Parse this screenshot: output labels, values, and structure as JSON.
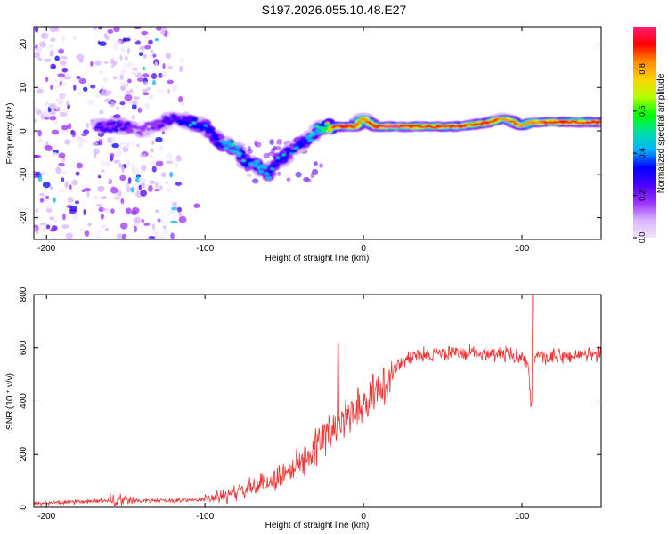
{
  "title": "S197.2026.055.10.48.E27",
  "colors": {
    "snr_line": "#ee3333",
    "colormap": [
      "#f2e6ff",
      "#d8b4ff",
      "#9b30ff",
      "#4b00ff",
      "#0000ff",
      "#00b4ff",
      "#00e0a0",
      "#00ff00",
      "#b4ff00",
      "#ffd200",
      "#ff8c00",
      "#ff0000",
      "#ff1e78"
    ]
  },
  "chart_data": [
    {
      "type": "heatmap",
      "title": "S197.2026.055.10.48.E27",
      "xlabel": "Height of straight line (km)",
      "ylabel": "Frequency (Hz)",
      "xlim": [
        -208,
        150
      ],
      "ylim": [
        -25,
        24
      ],
      "xticks": [
        -200,
        -100,
        0,
        100
      ],
      "yticks": [
        -20,
        -10,
        0,
        10,
        20
      ],
      "colorbar": {
        "label": "Normalized spectral amplitude",
        "range": [
          0,
          1
        ],
        "ticks": [
          "0.0",
          "0.2",
          "0.4",
          "0.6",
          "0.8"
        ]
      },
      "ridge": {
        "x": [
          -168,
          -160,
          -150,
          -140,
          -126,
          -120,
          -110,
          -100,
          -90,
          -80,
          -75,
          -68,
          -60,
          -55,
          -50,
          -44,
          -40,
          -35,
          -30,
          -25,
          -20,
          -15,
          -5,
          0,
          3,
          8,
          15,
          30,
          60,
          80,
          88,
          95,
          100,
          105,
          120,
          150
        ],
        "y": [
          1,
          1,
          1,
          0,
          2,
          3,
          2,
          1,
          -3,
          -4,
          -7,
          -8,
          -10,
          -7,
          -6,
          -4,
          -3,
          -2,
          0,
          1,
          1,
          1,
          1,
          3,
          2,
          1,
          1,
          1,
          1,
          2,
          3,
          2,
          1,
          2,
          2,
          2
        ],
        "amplitude": [
          0.3,
          0.35,
          0.3,
          0.2,
          0.3,
          0.35,
          0.5,
          0.45,
          0.5,
          0.55,
          0.45,
          0.55,
          0.5,
          0.45,
          0.5,
          0.4,
          0.45,
          0.5,
          0.5,
          0.7,
          0.95,
          0.9,
          0.9,
          0.8,
          0.9,
          0.95,
          0.97,
          0.95,
          0.9,
          0.95,
          0.8,
          0.9,
          0.85,
          0.8,
          0.95,
          0.9
        ]
      }
    },
    {
      "type": "line",
      "xlabel": "Height of straight line (km)",
      "ylabel": "SNR (10 * v/v)",
      "xlim": [
        -208,
        150
      ],
      "ylim": [
        0,
        800
      ],
      "xticks": [
        -200,
        -100,
        0,
        100
      ],
      "yticks": [
        0,
        200,
        400,
        600,
        800
      ],
      "series": [
        {
          "name": "SNR",
          "x": [
            -208,
            -180,
            -160,
            -140,
            -120,
            -100,
            -90,
            -80,
            -70,
            -60,
            -50,
            -40,
            -30,
            -20,
            -15,
            -10,
            -5,
            0,
            5,
            10,
            15,
            20,
            25,
            30,
            40,
            60,
            80,
            100,
            104,
            106,
            108,
            110,
            120,
            150
          ],
          "y": [
            15,
            20,
            25,
            25,
            25,
            30,
            40,
            55,
            75,
            95,
            125,
            170,
            230,
            290,
            330,
            350,
            380,
            390,
            410,
            440,
            470,
            520,
            550,
            565,
            575,
            580,
            580,
            570,
            530,
            360,
            560,
            560,
            565,
            575
          ]
        }
      ],
      "spikes": [
        {
          "x": -16,
          "y": 620
        },
        {
          "x": 6,
          "y": 500
        },
        {
          "x": 107,
          "y": 800
        }
      ]
    }
  ]
}
